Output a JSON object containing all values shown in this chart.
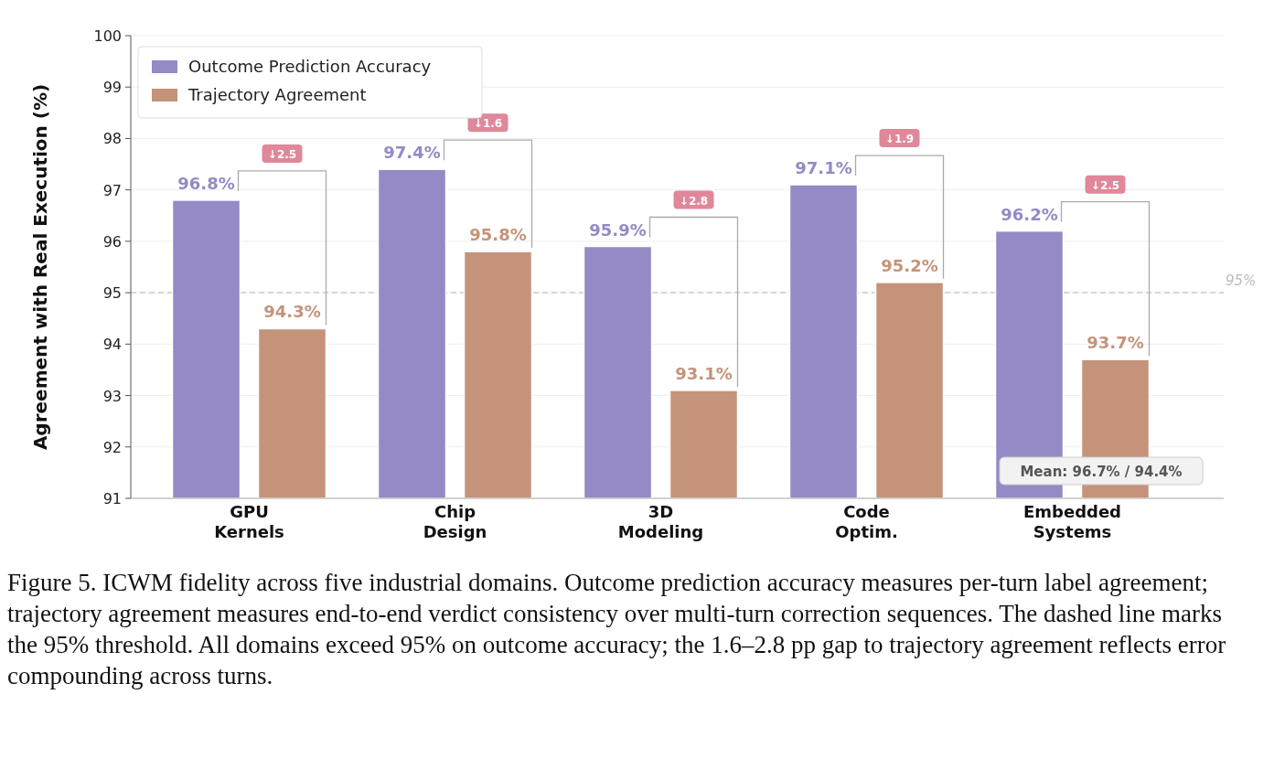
{
  "chart_data": {
    "type": "bar",
    "ylabel": "Agreement with Real Execution (%)",
    "categories": [
      "GPU Kernels",
      "Chip Design",
      "3D Modeling",
      "Code Optim.",
      "Embedded Systems"
    ],
    "series": [
      {
        "name": "Outcome Prediction Accuracy",
        "color": "#9589c6",
        "values": [
          96.8,
          97.4,
          95.9,
          97.1,
          96.2
        ],
        "value_labels": [
          "96.8%",
          "97.4%",
          "95.9%",
          "97.1%",
          "96.2%"
        ]
      },
      {
        "name": "Trajectory Agreement",
        "color": "#c4937a",
        "values": [
          94.3,
          95.8,
          93.1,
          95.2,
          93.7
        ],
        "value_labels": [
          "94.3%",
          "95.8%",
          "93.1%",
          "95.2%",
          "93.7%"
        ]
      }
    ],
    "ylim": [
      91,
      100
    ],
    "yticks": [
      91,
      92,
      93,
      94,
      95,
      96,
      97,
      98,
      99,
      100
    ],
    "grid": "y",
    "legend": "top left",
    "ref_lines": [
      {
        "axis": "y",
        "value": 95,
        "label": "95%",
        "color": "#cccccc",
        "line_style": "dashed"
      }
    ],
    "annotations": [
      "↓2.5",
      "↓1.6",
      "↓2.8",
      "↓1.9",
      "↓2.5",
      "Mean: 96.7% / 94.4%",
      "Figure 5. ICWM fidelity across five industrial domains. Outcome prediction accuracy measures per-turn label agreement; trajectory agreement measures end-to-end verdict consistency over multi-turn correction sequences. The dashed line marks the 95% threshold. All domains exceed 95% on outcome accuracy; the 1.6–2.8 pp gap to trajectory agreement reflects error compounding across turns."
    ]
  }
}
